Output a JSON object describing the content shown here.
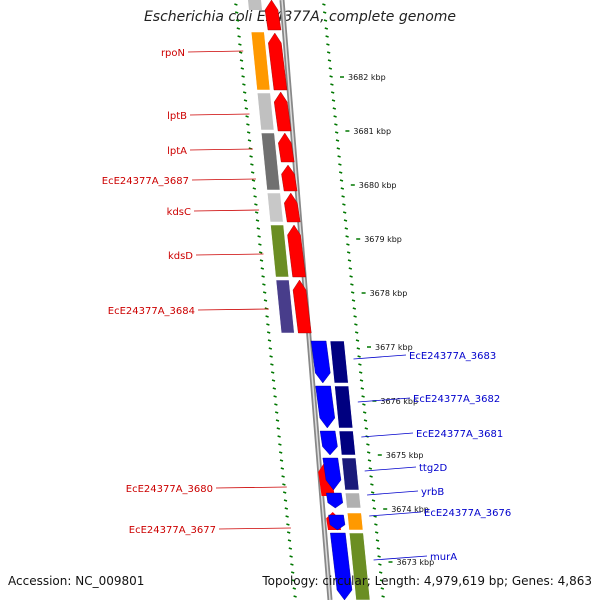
{
  "title": "Escherichia coli E24377A, complete genome",
  "accession_text": "Accession: NC_009801",
  "topology_text": "Topology: circular; Length: 4,979,619 bp; Genes: 4,863",
  "colors": {
    "forward_gene": "#ff0000",
    "reverse_gene": "#0000ff",
    "label_forward": "#cc0000",
    "label_reverse": "#0000cc",
    "tick": "#007700",
    "backbone": "#888888"
  },
  "kbp_ticks": [
    "3682 kbp",
    "3681 kbp",
    "3680 kbp",
    "3679 kbp",
    "3678 kbp",
    "3677 kbp",
    "3676 kbp",
    "3675 kbp",
    "3674 kbp",
    "3673 kbp"
  ],
  "forward_labels": [
    "rpoN",
    "lptB",
    "lptA",
    "EcE24377A_3687",
    "kdsC",
    "kdsD",
    "EcE24377A_3684",
    "EcE24377A_3680",
    "EcE24377A_3677"
  ],
  "reverse_labels": [
    "EcE24377A_3683",
    "EcE24377A_3682",
    "EcE24377A_3681",
    "ttg2D",
    "yrbB",
    "EcE24377A_3676",
    "murA"
  ],
  "cog_colors_left": [
    "#ff9900",
    "#c0c0c0",
    "#707070",
    "#909090",
    "#c8c8c8",
    "#6b8e23",
    "#483d8b"
  ],
  "cog_colors_right": [
    "#000080",
    "#000080",
    "#000080",
    "#1a1a7a",
    "#b0b0b0",
    "#ff9900",
    "#6b8e23"
  ]
}
